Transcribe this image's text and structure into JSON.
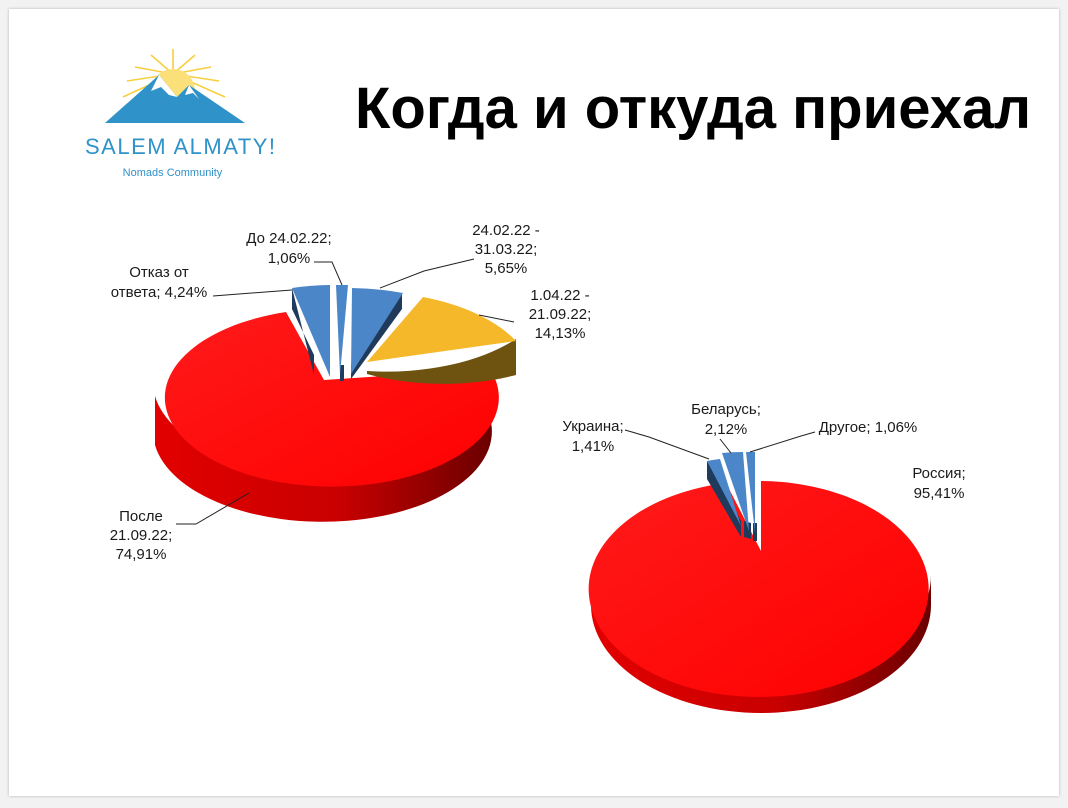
{
  "logo": {
    "name": "SALEM ALMATY!",
    "subtitle": "Nomads Community"
  },
  "title": "Когда и откуда приехал",
  "chart_data": [
    {
      "type": "pie",
      "series": [
        {
          "label_lines": [
            "До 24.02.22;",
            "1,06%"
          ],
          "value": 1.06,
          "color": "#4a86c8"
        },
        {
          "label_lines": [
            "24.02.22 -",
            "31.03.22;",
            "5,65%"
          ],
          "value": 5.65,
          "color": "#4a86c8"
        },
        {
          "label_lines": [
            "1.04.22 -",
            "21.09.22;",
            "14,13%"
          ],
          "value": 14.13,
          "color": "#f5b82a"
        },
        {
          "label_lines": [
            "После",
            "21.09.22;",
            "74,91%"
          ],
          "value": 74.91,
          "color": "#ff0000"
        },
        {
          "label_lines": [
            "Отказ от",
            "ответа; 4,24%"
          ],
          "value": 4.24,
          "color": "#4a86c8"
        }
      ]
    },
    {
      "type": "pie",
      "series": [
        {
          "label_lines": [
            "Россия;",
            "95,41%"
          ],
          "value": 95.41,
          "color": "#ff0000"
        },
        {
          "label_lines": [
            "Украина;",
            "1,41%"
          ],
          "value": 1.41,
          "color": "#4a86c8"
        },
        {
          "label_lines": [
            "Беларусь;",
            "2,12%"
          ],
          "value": 2.12,
          "color": "#4a86c8"
        },
        {
          "label_lines": [
            "Другое; 1,06%"
          ],
          "value": 1.06,
          "color": "#4a86c8"
        }
      ]
    }
  ]
}
